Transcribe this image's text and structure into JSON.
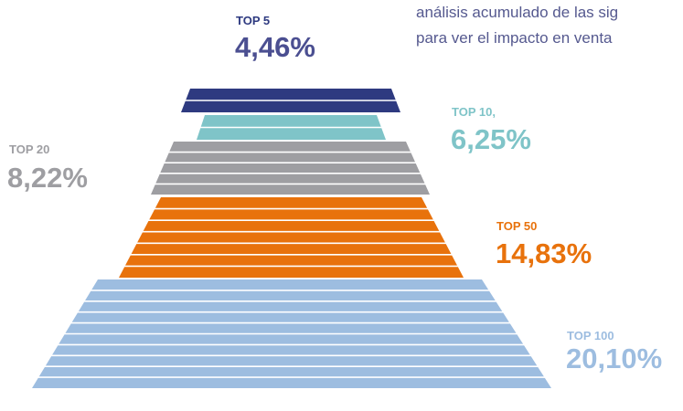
{
  "intro": {
    "line1": "análisis acumulado de las sig",
    "line2": "para ver el impacto en venta"
  },
  "tiers": [
    {
      "label": "TOP 5",
      "value": "4,46%"
    },
    {
      "label": "TOP 10,",
      "value": "6,25%"
    },
    {
      "label": "TOP 20",
      "value": "8,22%"
    },
    {
      "label": "TOP 50",
      "value": "14,83%"
    },
    {
      "label": "TOP 100",
      "value": "20,10%"
    }
  ]
}
